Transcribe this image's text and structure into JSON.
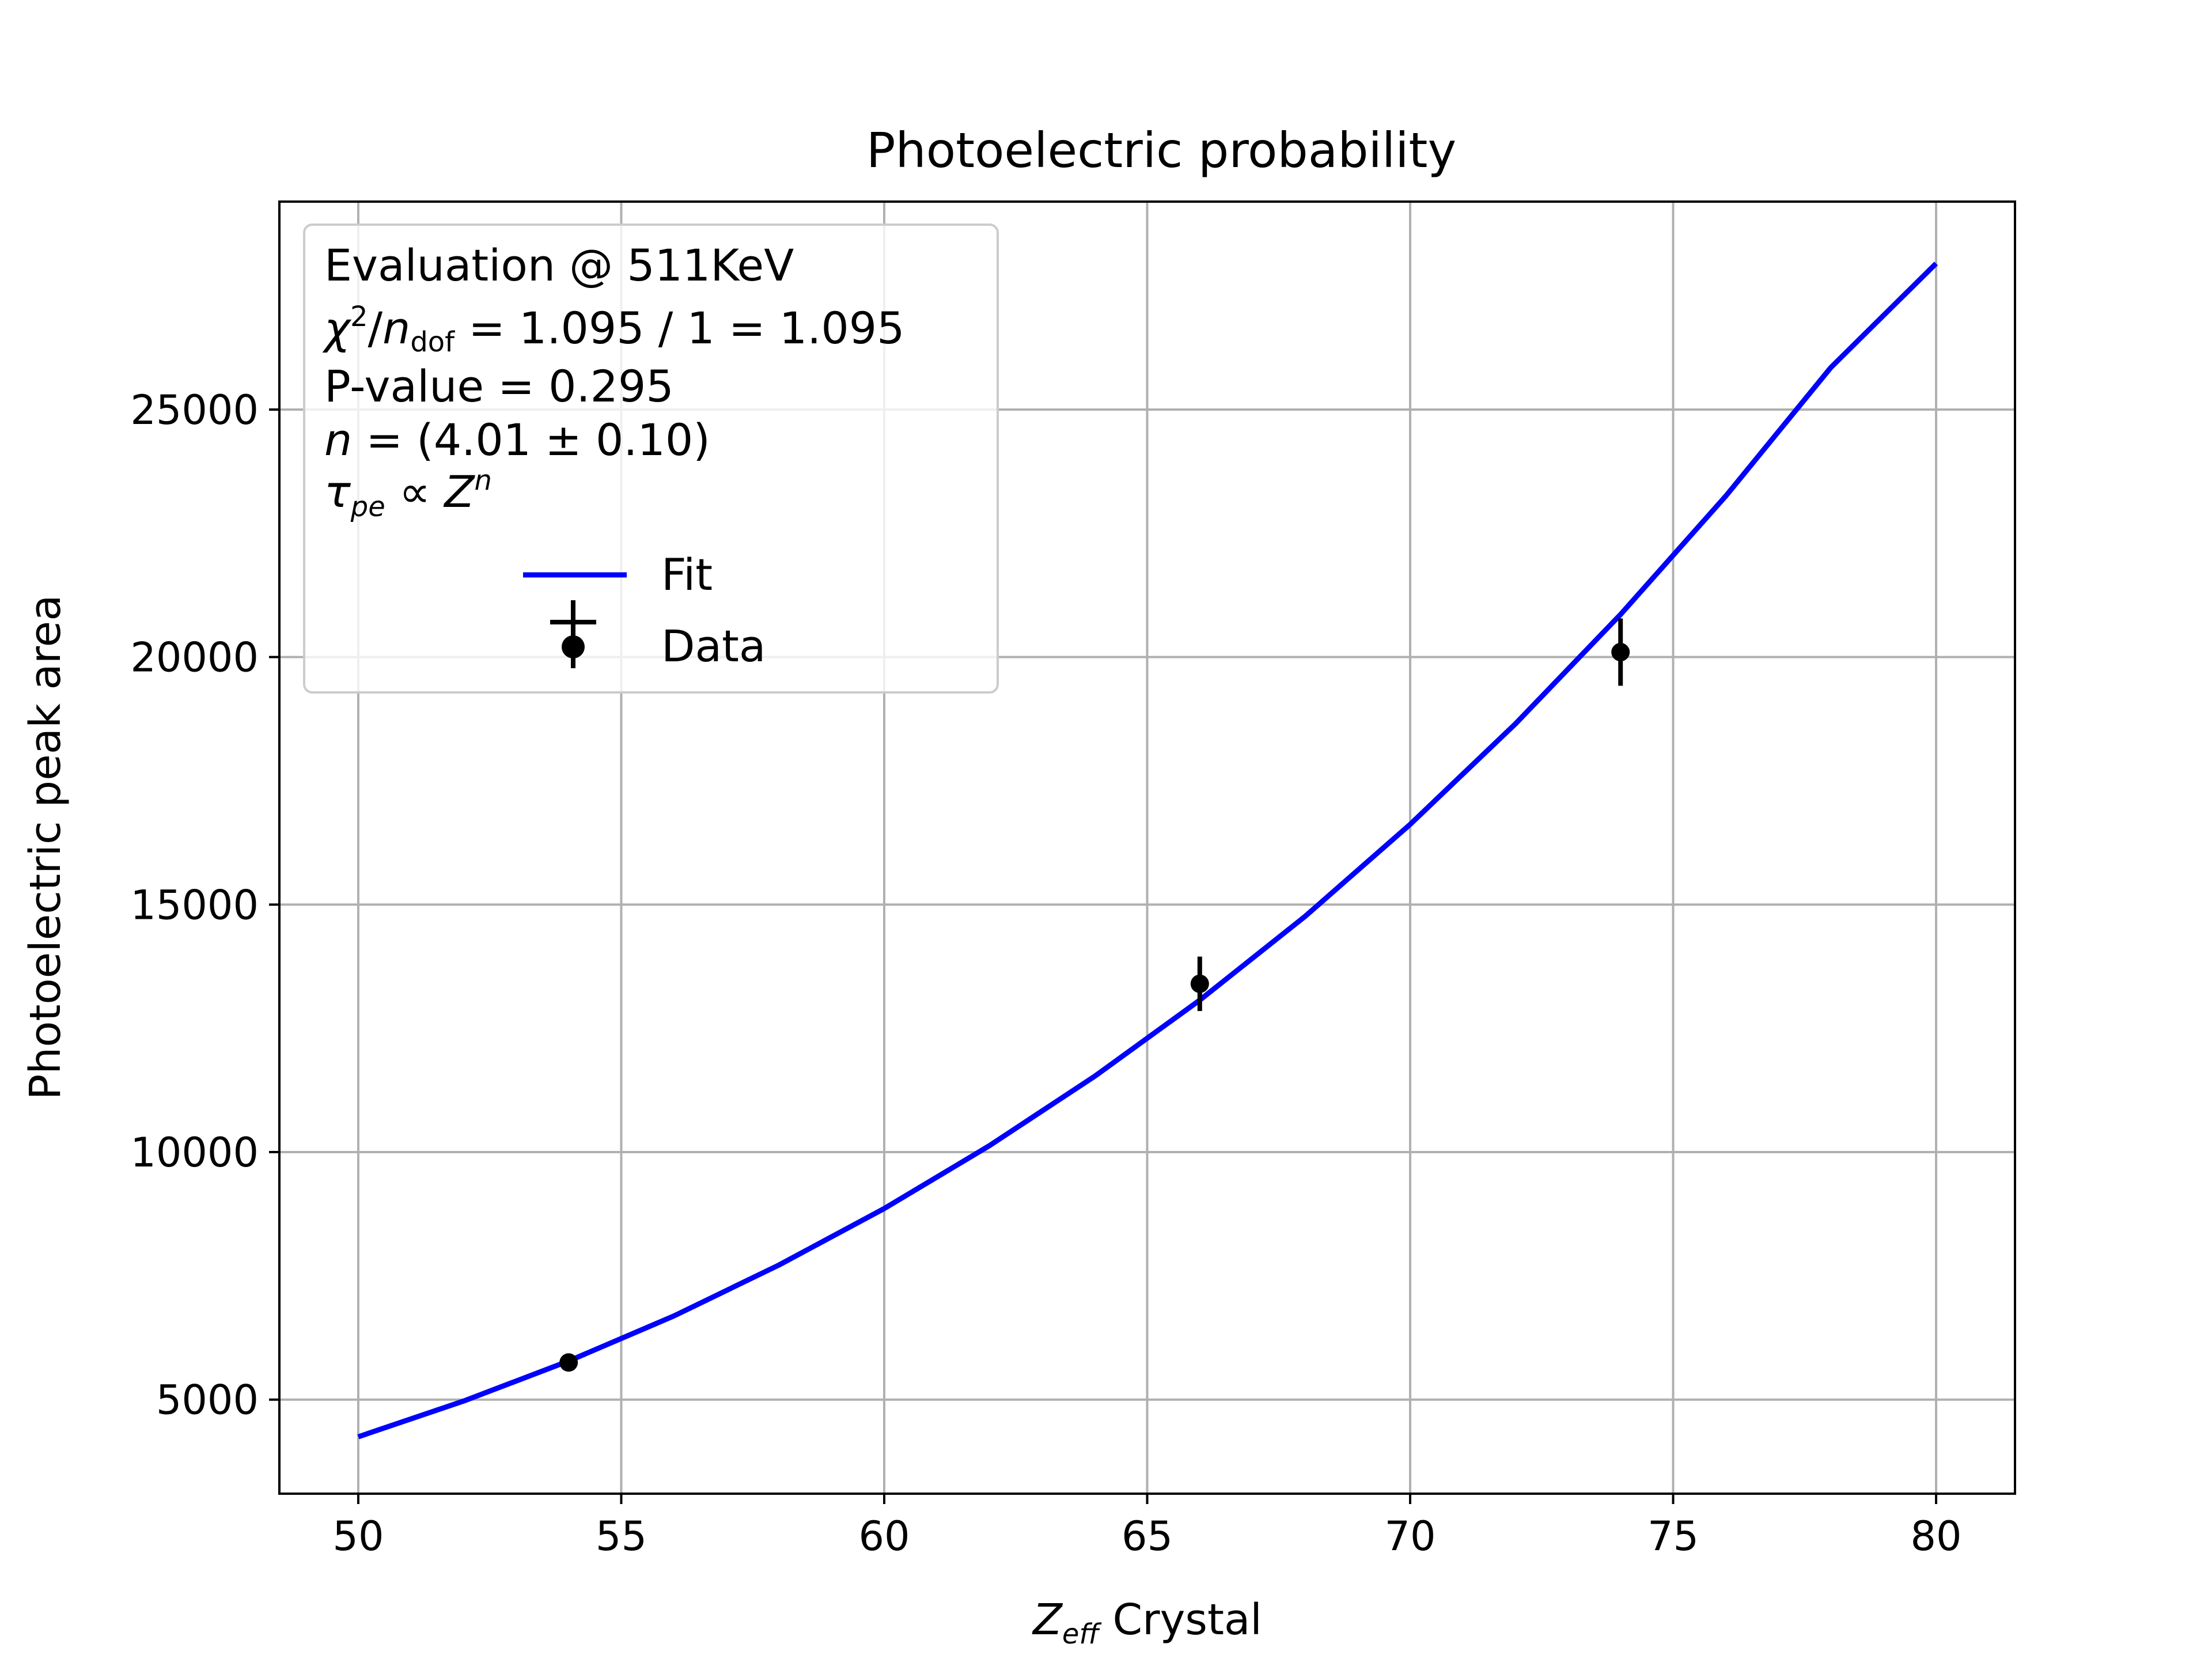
{
  "chart_data": {
    "type": "scatter",
    "title": "Photoelectric probability",
    "xlabel": {
      "symbol": "Z",
      "subscript": "eff",
      "text": " Crystal"
    },
    "ylabel": "Photoelectric peak area",
    "xlim": [
      48.5,
      81.5
    ],
    "ylim": [
      3100,
      29200
    ],
    "xticks": [
      50,
      55,
      60,
      65,
      70,
      75,
      80
    ],
    "yticks": [
      5000,
      10000,
      15000,
      20000,
      25000
    ],
    "grid": true,
    "colors": {
      "fit": "#0000ff",
      "data": "#000000",
      "grid": "#b0b0b0"
    },
    "series": [
      {
        "name": "Data",
        "kind": "errorbar",
        "x": [
          54,
          66,
          74
        ],
        "y": [
          5750,
          13400,
          20100
        ],
        "yerr": [
          150,
          550,
          680
        ]
      },
      {
        "name": "Fit",
        "kind": "line",
        "model": "power-law",
        "x": [
          50,
          52,
          54,
          56,
          58,
          60,
          62,
          64,
          66,
          68,
          70,
          72,
          74,
          76,
          78,
          80
        ],
        "y": [
          4250,
          4970,
          5780,
          6690,
          7720,
          8860,
          10130,
          11530,
          13070,
          14760,
          16620,
          18650,
          20860,
          23250,
          25850,
          27950
        ]
      }
    ],
    "legend": {
      "placement": "upper-left",
      "header": {
        "line1": "Evaluation @ 511KeV",
        "chi_symbol": "χ",
        "chi_sup": "2",
        "chi_slash": "/",
        "chi_n": "n",
        "chi_sub": "dof",
        "chi_value": " = 1.095 / 1 = 1.095",
        "pvalue": "P-value = 0.295",
        "n_symbol": "n",
        "n_value": " =  (4.01 ± 0.10)",
        "tau_symbol": "τ",
        "tau_sub": "pe",
        "tau_rel": " ∝ ",
        "z_symbol": "Z",
        "z_sup": "n"
      },
      "entries": [
        "Fit",
        "Data"
      ]
    }
  }
}
